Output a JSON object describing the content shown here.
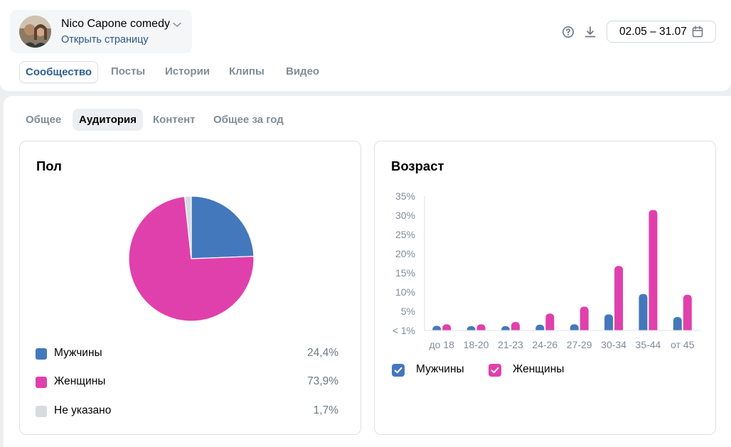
{
  "header": {
    "community_name": "Nico Capone comedy",
    "community_link": "Открыть страницу",
    "date_range": "02.05 – 31.07",
    "icons": [
      "help-icon",
      "download-icon",
      "calendar-icon",
      "chevron-down-icon"
    ]
  },
  "main_tabs": [
    {
      "label": "Сообщество",
      "active": true
    },
    {
      "label": "Посты",
      "active": false
    },
    {
      "label": "Истории",
      "active": false
    },
    {
      "label": "Клипы",
      "active": false
    },
    {
      "label": "Видео",
      "active": false
    }
  ],
  "sub_tabs": [
    {
      "label": "Общее",
      "active": false
    },
    {
      "label": "Аудитория",
      "active": true
    },
    {
      "label": "Контент",
      "active": false
    },
    {
      "label": "Общее за год",
      "active": false
    }
  ],
  "colors": {
    "men": "#4378bc",
    "women": "#e040ac",
    "unknown": "#d7dbe0",
    "accent": "#2d5f93"
  },
  "gender": {
    "title": "Пол",
    "legend": [
      {
        "label": "Мужчины",
        "value": "24,4%"
      },
      {
        "label": "Женщины",
        "value": "73,9%"
      },
      {
        "label": "Не указано",
        "value": "1,7%"
      }
    ]
  },
  "age": {
    "title": "Возраст",
    "legend": [
      {
        "label": "Мужчины"
      },
      {
        "label": "Женщины"
      }
    ]
  },
  "chart_data": [
    {
      "type": "pie",
      "title": "Пол",
      "categories": [
        "Мужчины",
        "Женщины",
        "Не указано"
      ],
      "values": [
        24.4,
        73.9,
        1.7
      ],
      "legend": "bottom"
    },
    {
      "type": "bar",
      "title": "Возраст",
      "categories": [
        "до 18",
        "18-20",
        "21-23",
        "24-26",
        "27-29",
        "30-34",
        "35-44",
        "от 45"
      ],
      "series": [
        {
          "name": "Мужчины",
          "values": [
            1.2,
            0.8,
            0.8,
            1.5,
            1.6,
            4.2,
            9.5,
            3.5
          ]
        },
        {
          "name": "Женщины",
          "values": [
            1.6,
            1.6,
            2.2,
            4.4,
            6.2,
            16.8,
            31.4,
            9.3
          ]
        }
      ],
      "yticks": [
        "< 1%",
        "5%",
        "10%",
        "15%",
        "20%",
        "25%",
        "30%",
        "35%"
      ],
      "ylim": [
        0,
        35
      ],
      "grid": false,
      "legend": "bottom-left"
    }
  ]
}
